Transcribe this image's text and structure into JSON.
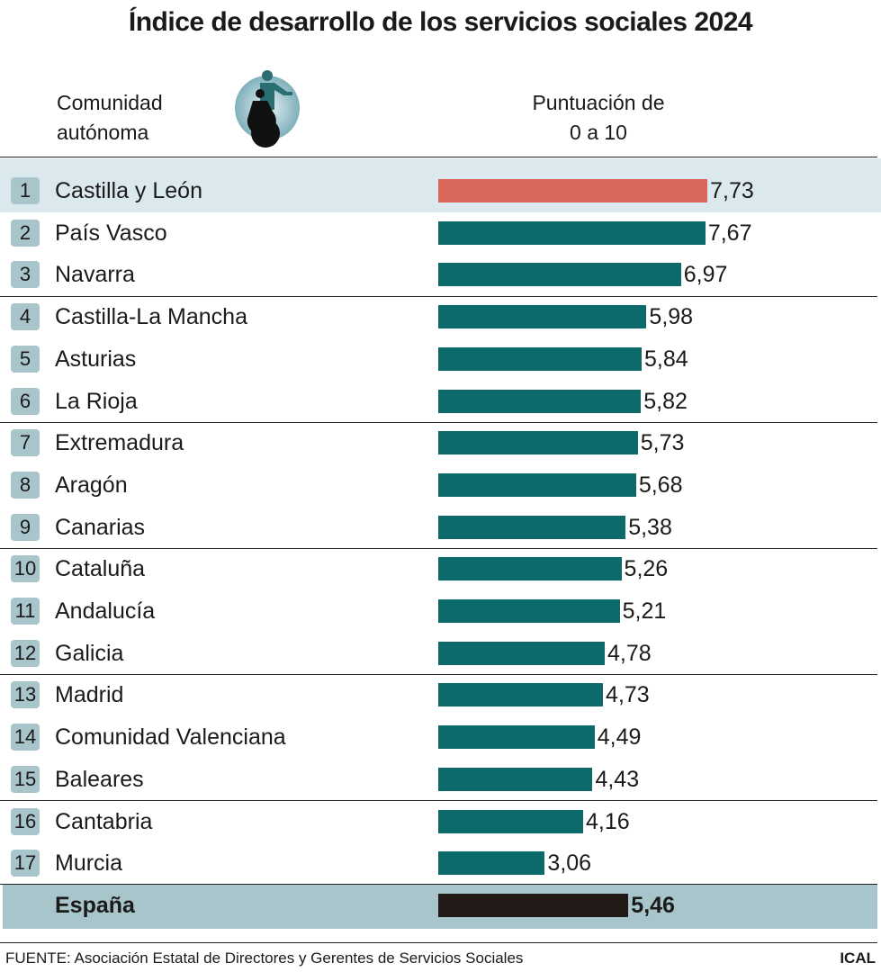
{
  "chart_data": {
    "type": "bar",
    "orientation": "horizontal",
    "title": "Índice de desarrollo de los servicios sociales 2024",
    "category_header": "Comunidad autónoma",
    "value_header": "Puntuación de 0 a 10",
    "ranks": [
      1,
      2,
      3,
      4,
      5,
      6,
      7,
      8,
      9,
      10,
      11,
      12,
      13,
      14,
      15,
      16,
      17
    ],
    "categories": [
      "Castilla y León",
      "País Vasco",
      "Navarra",
      "Castilla-La Mancha",
      "Asturias",
      "La Rioja",
      "Extremadura",
      "Aragón",
      "Canarias",
      "Cataluña",
      "Andalucía",
      "Galicia",
      "Madrid",
      "Comunidad Valenciana",
      "Baleares",
      "Cantabria",
      "Murcia"
    ],
    "values": [
      7.73,
      7.67,
      6.97,
      5.98,
      5.84,
      5.82,
      5.73,
      5.68,
      5.38,
      5.26,
      5.21,
      4.78,
      4.73,
      4.49,
      4.43,
      4.16,
      3.06
    ],
    "value_labels": [
      "7,73",
      "7,67",
      "6,97",
      "5,98",
      "5,84",
      "5,82",
      "5,73",
      "5,68",
      "5,38",
      "5,26",
      "5,21",
      "4,78",
      "4,73",
      "4,49",
      "4,43",
      "4,16",
      "3,06"
    ],
    "colors": [
      "#d9685a",
      "#0d6a6a",
      "#0d6a6a",
      "#0d6a6a",
      "#0d6a6a",
      "#0d6a6a",
      "#0d6a6a",
      "#0d6a6a",
      "#0d6a6a",
      "#0d6a6a",
      "#0d6a6a",
      "#0d6a6a",
      "#0d6a6a",
      "#0d6a6a",
      "#0d6a6a",
      "#0d6a6a",
      "#0d6a6a"
    ],
    "total": {
      "name": "España",
      "value": 5.46,
      "value_label": "5,46",
      "color": "#231916"
    },
    "source": "FUENTE: Asociación Estatal de Directores y Gerentes de Servicios Sociales",
    "credit": "ICAL"
  }
}
